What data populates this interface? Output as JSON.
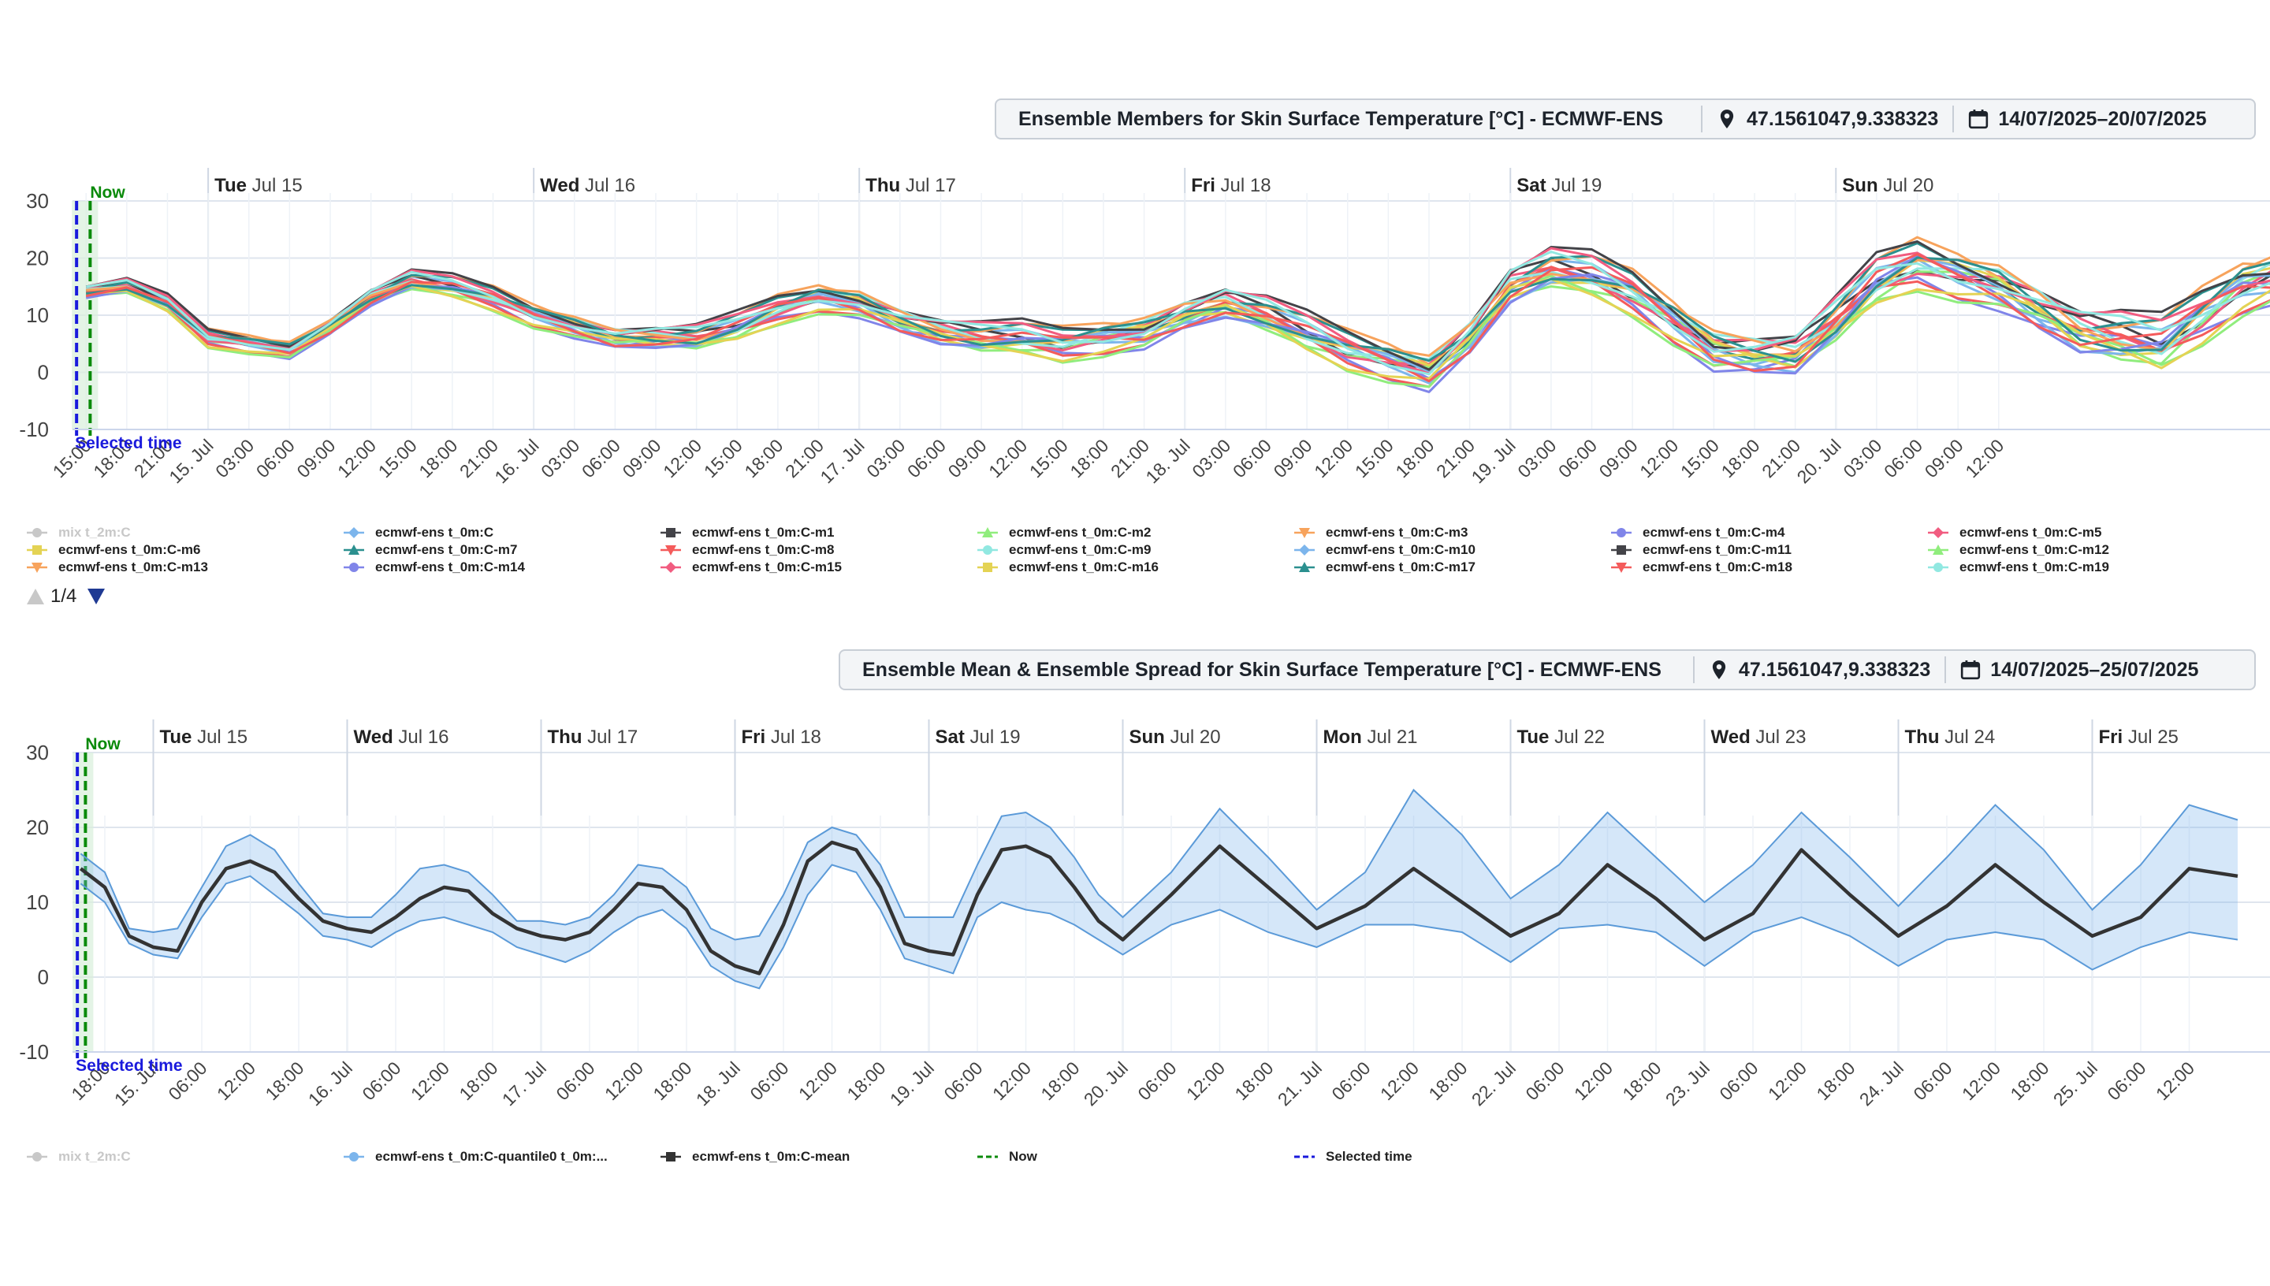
{
  "panel1": {
    "title": "Ensemble Members for Skin Surface Temperature [°C] - ECMWF-ENS",
    "location": "47.1561047,9.338323",
    "date_range": "14/07/2025–20/07/2025",
    "pager": "1/4",
    "legend": [
      {
        "label": "mix t_2m:C",
        "color": "#c8c8c8",
        "marker": "circle",
        "disabled": true
      },
      {
        "label": "ecmwf-ens t_0m:C",
        "color": "#7cb5ec",
        "marker": "diamond"
      },
      {
        "label": "ecmwf-ens t_0m:C-m1",
        "color": "#434348",
        "marker": "square"
      },
      {
        "label": "ecmwf-ens t_0m:C-m2",
        "color": "#90ed7d",
        "marker": "triangle"
      },
      {
        "label": "ecmwf-ens t_0m:C-m3",
        "color": "#f7a35c",
        "marker": "tri-down"
      },
      {
        "label": "ecmwf-ens t_0m:C-m4",
        "color": "#8085e9",
        "marker": "circle"
      },
      {
        "label": "ecmwf-ens t_0m:C-m5",
        "color": "#f15c80",
        "marker": "diamond"
      },
      {
        "label": "ecmwf-ens t_0m:C-m6",
        "color": "#e4d354",
        "marker": "square"
      },
      {
        "label": "ecmwf-ens t_0m:C-m7",
        "color": "#2b908f",
        "marker": "triangle"
      },
      {
        "label": "ecmwf-ens t_0m:C-m8",
        "color": "#f45b5b",
        "marker": "tri-down"
      },
      {
        "label": "ecmwf-ens t_0m:C-m9",
        "color": "#91e8e1",
        "marker": "circle"
      },
      {
        "label": "ecmwf-ens t_0m:C-m10",
        "color": "#7cb5ec",
        "marker": "diamond"
      },
      {
        "label": "ecmwf-ens t_0m:C-m11",
        "color": "#434348",
        "marker": "square"
      },
      {
        "label": "ecmwf-ens t_0m:C-m12",
        "color": "#90ed7d",
        "marker": "triangle"
      },
      {
        "label": "ecmwf-ens t_0m:C-m13",
        "color": "#f7a35c",
        "marker": "tri-down"
      },
      {
        "label": "ecmwf-ens t_0m:C-m14",
        "color": "#8085e9",
        "marker": "circle"
      },
      {
        "label": "ecmwf-ens t_0m:C-m15",
        "color": "#f15c80",
        "marker": "diamond"
      },
      {
        "label": "ecmwf-ens t_0m:C-m16",
        "color": "#e4d354",
        "marker": "square"
      },
      {
        "label": "ecmwf-ens t_0m:C-m17",
        "color": "#2b908f",
        "marker": "triangle"
      },
      {
        "label": "ecmwf-ens t_0m:C-m18",
        "color": "#f45b5b",
        "marker": "tri-down"
      },
      {
        "label": "ecmwf-ens t_0m:C-m19",
        "color": "#91e8e1",
        "marker": "circle"
      }
    ]
  },
  "panel2": {
    "title": "Ensemble Mean & Ensemble Spread for Skin Surface Temperature [°C] - ECMWF-ENS",
    "location": "47.1561047,9.338323",
    "date_range": "14/07/2025–25/07/2025",
    "legend": [
      {
        "label": "mix t_2m:C",
        "color": "#c8c8c8",
        "marker": "circle",
        "disabled": true
      },
      {
        "label": "ecmwf-ens t_0m:C-quantile0 t_0m:...",
        "color": "#7cb5ec",
        "marker": "circle"
      },
      {
        "label": "ecmwf-ens t_0m:C-mean",
        "color": "#333333",
        "marker": "square"
      },
      {
        "label": "Now",
        "color": "#0a8a0a",
        "marker": "dash"
      },
      {
        "label": "Selected time",
        "color": "#1a1adc",
        "marker": "dash"
      }
    ]
  },
  "chart_data": [
    {
      "type": "line",
      "title": "Ensemble Members for Skin Surface Temperature [°C] - ECMWF-ENS",
      "x_start_hour": 15,
      "step_hours": 3,
      "ylim": [
        -10,
        30
      ],
      "yticks": [
        -10,
        0,
        10,
        20,
        30
      ],
      "xtick_labels": [
        "15:00",
        "18:00",
        "21:00",
        "15. Jul",
        "03:00",
        "06:00",
        "09:00",
        "12:00",
        "15:00",
        "18:00",
        "21:00",
        "16. Jul",
        "03:00",
        "06:00",
        "09:00",
        "12:00",
        "15:00",
        "18:00",
        "21:00",
        "17. Jul",
        "03:00",
        "06:00",
        "09:00",
        "12:00",
        "15:00",
        "18:00",
        "21:00",
        "18. Jul",
        "03:00",
        "06:00",
        "09:00",
        "12:00",
        "15:00",
        "18:00",
        "21:00",
        "19. Jul",
        "03:00",
        "06:00",
        "09:00",
        "12:00",
        "15:00",
        "18:00",
        "21:00",
        "20. Jul",
        "03:00",
        "06:00",
        "09:00",
        "12:00"
      ],
      "day_labels": [
        {
          "dow": "Tue",
          "date": "Jul 15",
          "hour": 24
        },
        {
          "dow": "Wed",
          "date": "Jul 16",
          "hour": 48
        },
        {
          "dow": "Thu",
          "date": "Jul 17",
          "hour": 72
        },
        {
          "dow": "Fri",
          "date": "Jul 18",
          "hour": 96
        },
        {
          "dow": "Sat",
          "date": "Jul 19",
          "hour": 120
        },
        {
          "dow": "Sun",
          "date": "Jul 20",
          "hour": 144
        }
      ],
      "now_label": "Now",
      "selected_label": "Selected time",
      "base_series": [
        14,
        15,
        12,
        6,
        5,
        4,
        8,
        13,
        16,
        15,
        13,
        10,
        8,
        6,
        6,
        6,
        8,
        11,
        13,
        12,
        9,
        7,
        6,
        6,
        5,
        6,
        7,
        10,
        12,
        10,
        7,
        4,
        2,
        0,
        6,
        15,
        18,
        17,
        14,
        9,
        4,
        3,
        3,
        9,
        16,
        19,
        17,
        15,
        11,
        7,
        6,
        5,
        10,
        15,
        17
      ],
      "member_offsets": [
        0,
        0.8,
        -0.9,
        1.7,
        -1.5,
        0.4,
        -0.3,
        1.2,
        -1.2,
        0.6,
        -0.6,
        2.1,
        -2.0,
        0.9,
        -0.8,
        1.5,
        -1.6,
        0.3,
        -0.4,
        1.0
      ],
      "member_colors": [
        "#7cb5ec",
        "#434348",
        "#90ed7d",
        "#f7a35c",
        "#8085e9",
        "#f15c80",
        "#e4d354",
        "#2b908f",
        "#f45b5b",
        "#91e8e1",
        "#7cb5ec",
        "#434348",
        "#90ed7d",
        "#f7a35c",
        "#8085e9",
        "#f15c80",
        "#e4d354",
        "#2b908f",
        "#f45b5b",
        "#91e8e1"
      ]
    },
    {
      "type": "area",
      "title": "Ensemble Mean & Ensemble Spread for Skin Surface Temperature [°C] - ECMWF-ENS",
      "x_start_hour": 15,
      "step_hours": 3,
      "ylim": [
        -10,
        30
      ],
      "yticks": [
        -10,
        0,
        10,
        20,
        30
      ],
      "xtick_labels": [
        "18:00",
        "15. Jul",
        "06:00",
        "12:00",
        "18:00",
        "16. Jul",
        "06:00",
        "12:00",
        "18:00",
        "17. Jul",
        "06:00",
        "12:00",
        "18:00",
        "18. Jul",
        "06:00",
        "12:00",
        "18:00",
        "19. Jul",
        "06:00",
        "12:00",
        "18:00",
        "20. Jul",
        "06:00",
        "12:00",
        "18:00",
        "21. Jul",
        "06:00",
        "12:00",
        "18:00",
        "22. Jul",
        "06:00",
        "12:00",
        "18:00",
        "23. Jul",
        "06:00",
        "12:00",
        "18:00",
        "24. Jul",
        "06:00",
        "12:00",
        "18:00",
        "25. Jul",
        "06:00",
        "12:00"
      ],
      "day_labels": [
        {
          "dow": "Tue",
          "date": "Jul 15",
          "hour": 24
        },
        {
          "dow": "Wed",
          "date": "Jul 16",
          "hour": 48
        },
        {
          "dow": "Thu",
          "date": "Jul 17",
          "hour": 72
        },
        {
          "dow": "Fri",
          "date": "Jul 18",
          "hour": 96
        },
        {
          "dow": "Sat",
          "date": "Jul 19",
          "hour": 120
        },
        {
          "dow": "Sun",
          "date": "Jul 20",
          "hour": 144
        },
        {
          "dow": "Mon",
          "date": "Jul 21",
          "hour": 168
        },
        {
          "dow": "Tue",
          "date": "Jul 22",
          "hour": 192
        },
        {
          "dow": "Wed",
          "date": "Jul 23",
          "hour": 216
        },
        {
          "dow": "Thu",
          "date": "Jul 24",
          "hour": 240
        },
        {
          "dow": "Fri",
          "date": "Jul 25",
          "hour": 264
        }
      ],
      "now_label": "Now",
      "selected_label": "Selected time",
      "mean_hours": [
        15,
        18,
        21,
        24,
        27,
        30,
        33,
        36,
        39,
        42,
        45,
        48,
        51,
        54,
        57,
        60,
        63,
        66,
        69,
        72,
        75,
        78,
        81,
        84,
        87,
        90,
        93,
        96,
        99,
        102,
        105,
        108,
        111,
        114,
        117,
        120,
        123,
        126,
        129,
        132,
        135,
        138,
        141,
        144,
        150,
        156,
        162,
        168,
        174,
        180,
        186,
        192,
        198,
        204,
        210,
        216,
        222,
        228,
        234,
        240,
        246,
        252,
        258,
        264,
        270,
        276,
        282
      ],
      "mean": [
        14.5,
        12,
        5.5,
        4,
        3.5,
        10,
        14.5,
        15.5,
        14,
        10.5,
        7.5,
        6.5,
        6,
        8,
        10.5,
        12,
        11.5,
        8.5,
        6.5,
        5.5,
        5,
        6,
        9,
        12.5,
        12,
        9,
        3.5,
        1.5,
        0.5,
        7,
        15.5,
        18,
        17,
        12,
        4.5,
        3.5,
        3,
        11,
        17,
        17.5,
        16,
        12,
        7.5,
        5,
        11,
        17.5,
        12,
        6.5,
        9.5,
        14.5,
        10,
        5.5,
        8.5,
        15,
        10.5,
        5,
        8.5,
        17,
        11,
        5.5,
        9.5,
        15,
        10,
        5.5,
        8,
        14.5,
        13.5
      ],
      "upper": [
        16.5,
        14,
        6.5,
        6,
        6.5,
        12,
        17.5,
        19,
        17,
        12.5,
        8.5,
        8,
        8,
        11,
        14.5,
        15,
        14,
        11,
        7.5,
        7.5,
        7,
        8,
        11,
        15,
        14.5,
        12,
        6.5,
        5,
        5.5,
        11,
        18,
        20,
        19,
        15,
        8,
        8,
        8,
        15,
        21.5,
        22,
        20,
        16,
        11,
        8,
        14,
        22.5,
        16,
        9,
        14,
        25,
        19,
        10.5,
        15,
        22,
        16,
        10,
        15,
        22,
        16,
        9.5,
        16,
        23,
        17,
        9,
        15,
        23,
        21
      ],
      "lower": [
        12.5,
        10,
        4.5,
        3,
        2.5,
        8,
        12.5,
        13.5,
        11,
        8.5,
        5.5,
        5,
        4,
        6,
        7.5,
        8,
        7,
        6,
        4,
        3,
        2,
        3.5,
        6,
        8,
        9,
        6.5,
        1.5,
        -0.5,
        -1.5,
        4,
        11,
        15,
        14,
        9,
        2.5,
        1.5,
        0.5,
        8,
        10,
        9,
        8.5,
        7,
        5,
        3,
        7,
        9,
        6,
        4,
        7,
        7,
        6,
        2,
        6.5,
        7,
        6,
        1.5,
        6,
        8,
        5.5,
        1.5,
        5,
        6,
        5,
        1,
        4,
        6,
        5
      ]
    }
  ]
}
